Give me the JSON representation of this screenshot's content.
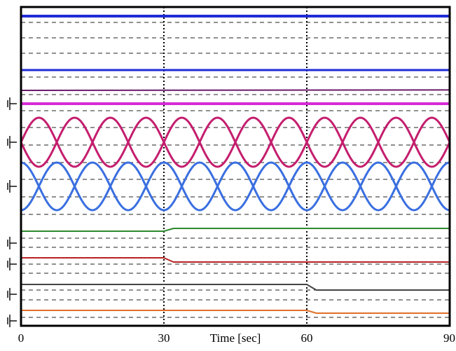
{
  "chart_data": {
    "type": "line",
    "title": "",
    "xlabel": "Time [sec]",
    "ylabel": "",
    "xlim": [
      0,
      90
    ],
    "x_ticks": [
      0,
      30,
      60,
      90
    ],
    "x_tick_labels": [
      "0",
      "30",
      "60",
      "90"
    ],
    "event_markers": [
      30,
      60
    ],
    "grid": "dashed horizontal",
    "legend": "none",
    "series": [
      {
        "color": "#1f2bd6",
        "kind": "flat",
        "x": [
          0,
          90
        ],
        "y": [
          0.95,
          0.95
        ]
      },
      {
        "color": "#1f2bd6",
        "kind": "flat",
        "x": [
          0,
          90
        ],
        "y": [
          0.78,
          0.78
        ]
      },
      {
        "color": "#6a1a6a",
        "kind": "flat",
        "x": [
          0,
          90
        ],
        "y": [
          0.73,
          0.74
        ]
      },
      {
        "color": "#d62bd6",
        "kind": "flat",
        "x": [
          0,
          90
        ],
        "y": [
          0.69,
          0.69
        ]
      },
      {
        "color": "#c41e6e",
        "kind": "sine",
        "period_s": 15,
        "phase_deg": 0
      },
      {
        "color": "#c41e6e",
        "kind": "sine",
        "period_s": 15,
        "phase_deg": 180
      },
      {
        "color": "#3a6fe0",
        "kind": "sine",
        "period_s": 15,
        "phase_deg": 90
      },
      {
        "color": "#3a6fe0",
        "kind": "sine",
        "period_s": 15,
        "phase_deg": 270
      },
      {
        "color": "#2e8a2e",
        "kind": "step",
        "x": [
          0,
          30,
          32,
          90
        ],
        "y": [
          0,
          0,
          -1,
          -1
        ]
      },
      {
        "color": "#b82222",
        "kind": "step",
        "x": [
          0,
          30,
          32,
          90
        ],
        "y": [
          0,
          0,
          1,
          1
        ]
      },
      {
        "color": "#444444",
        "kind": "step",
        "x": [
          0,
          60,
          62,
          90
        ],
        "y": [
          0,
          0,
          1,
          1
        ]
      },
      {
        "color": "#e0702a",
        "kind": "step",
        "x": [
          0,
          60,
          62,
          90
        ],
        "y": [
          0,
          0,
          -1,
          -1
        ]
      }
    ]
  }
}
